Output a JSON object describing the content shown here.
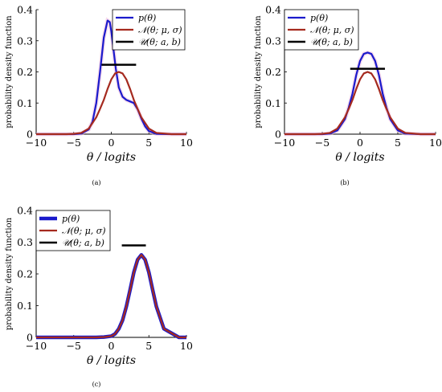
{
  "figure": {
    "panel_labels": [
      "(a)",
      "(b)",
      "(c)"
    ]
  },
  "colors": {
    "p_theta": "#1a1acc",
    "normal": "#a52a1f",
    "uniform": "#000000",
    "highlight_pink": "#f2b8dc"
  },
  "chart_data": [
    {
      "type": "line",
      "panel": "(a)",
      "xlabel": "θ / logits",
      "ylabel": "probability density function",
      "xlim": [
        -10,
        10
      ],
      "ylim": [
        0,
        0.4
      ],
      "xticks": [
        -10,
        -5,
        0,
        5,
        10
      ],
      "yticks": [
        0,
        0.1,
        0.2,
        0.3,
        0.4
      ],
      "grid": false,
      "legend_position": "top-right",
      "series": [
        {
          "name": "p(θ)",
          "color": "#1a1acc",
          "x": [
            -10,
            -8,
            -6,
            -5,
            -4,
            -3,
            -2.5,
            -2,
            -1.5,
            -1,
            -0.5,
            -0.2,
            0,
            0.3,
            0.6,
            1,
            1.5,
            2,
            2.5,
            3,
            3.5,
            4,
            4.5,
            5,
            6,
            8,
            10
          ],
          "y": [
            0,
            0,
            0,
            0,
            0.002,
            0.015,
            0.04,
            0.1,
            0.2,
            0.31,
            0.365,
            0.36,
            0.33,
            0.27,
            0.21,
            0.15,
            0.12,
            0.11,
            0.105,
            0.1,
            0.08,
            0.05,
            0.025,
            0.01,
            0.001,
            0,
            0
          ]
        },
        {
          "name": "𝒩(θ; μ, σ)",
          "color": "#a52a1f",
          "x": [
            -10,
            -8,
            -6,
            -5,
            -4,
            -3,
            -2,
            -1.5,
            -1,
            -0.5,
            0,
            0.5,
            1,
            1.5,
            2,
            2.5,
            3,
            3.5,
            4,
            5,
            6,
            8,
            10
          ],
          "y": [
            0,
            0,
            0,
            0.001,
            0.004,
            0.018,
            0.054,
            0.081,
            0.11,
            0.145,
            0.176,
            0.195,
            0.2,
            0.195,
            0.176,
            0.145,
            0.11,
            0.081,
            0.054,
            0.018,
            0.004,
            0,
            0
          ]
        },
        {
          "name": "𝒰(θ; a, b)",
          "color": "#000000",
          "x": [
            -1.3,
            3.3
          ],
          "y": [
            0.223,
            0.223
          ]
        }
      ]
    },
    {
      "type": "line",
      "panel": "(b)",
      "xlabel": "θ / logits",
      "ylabel": "probability density function",
      "xlim": [
        -10,
        10
      ],
      "ylim": [
        0,
        0.4
      ],
      "xticks": [
        -10,
        -5,
        0,
        5,
        10
      ],
      "yticks": [
        0,
        0.1,
        0.2,
        0.3,
        0.4
      ],
      "grid": false,
      "legend_position": "top-right",
      "series": [
        {
          "name": "p(θ)",
          "color": "#1a1acc",
          "x": [
            -10,
            -8,
            -6,
            -5,
            -4,
            -3,
            -2,
            -1.5,
            -1,
            -0.5,
            0,
            0.5,
            1,
            1.5,
            2,
            2.5,
            3,
            3.5,
            4,
            5,
            6,
            8,
            10
          ],
          "y": [
            0,
            0,
            0,
            0,
            0.002,
            0.012,
            0.048,
            0.085,
            0.13,
            0.19,
            0.235,
            0.258,
            0.262,
            0.258,
            0.235,
            0.19,
            0.13,
            0.085,
            0.048,
            0.012,
            0.002,
            0,
            0
          ]
        },
        {
          "name": "𝒩(θ; μ, σ)",
          "color": "#a52a1f",
          "x": [
            -10,
            -8,
            -6,
            -5,
            -4,
            -3,
            -2,
            -1.5,
            -1,
            -0.5,
            0,
            0.5,
            1,
            1.5,
            2,
            2.5,
            3,
            3.5,
            4,
            5,
            6,
            8,
            10
          ],
          "y": [
            0,
            0,
            0,
            0.001,
            0.004,
            0.018,
            0.054,
            0.081,
            0.11,
            0.145,
            0.176,
            0.195,
            0.2,
            0.195,
            0.176,
            0.145,
            0.11,
            0.081,
            0.054,
            0.018,
            0.004,
            0,
            0
          ]
        },
        {
          "name": "𝒰(θ; a, b)",
          "color": "#000000",
          "x": [
            -1.3,
            3.3
          ],
          "y": [
            0.21,
            0.21
          ]
        }
      ]
    },
    {
      "type": "line",
      "panel": "(c)",
      "xlabel": "θ / logits",
      "ylabel": "probability density function",
      "xlim": [
        -10,
        10
      ],
      "ylim": [
        0,
        0.4
      ],
      "xticks": [
        -10,
        -5,
        0,
        5,
        10
      ],
      "yticks": [
        0,
        0.1,
        0.2,
        0.3,
        0.4
      ],
      "grid": false,
      "legend_position": "top-left",
      "series": [
        {
          "name": "p(θ)",
          "color": "#1a1acc",
          "x": [
            -10,
            -6,
            -3,
            -2,
            -1,
            0,
            0.5,
            1,
            1.5,
            2,
            2.5,
            3,
            3.5,
            4,
            4.5,
            5,
            5.5,
            6,
            7,
            9,
            10
          ],
          "y": [
            0,
            0,
            0,
            0,
            0.001,
            0.004,
            0.011,
            0.027,
            0.054,
            0.097,
            0.15,
            0.205,
            0.245,
            0.26,
            0.245,
            0.205,
            0.15,
            0.097,
            0.027,
            0,
            0
          ]
        },
        {
          "name": "𝒩(θ; μ, σ)",
          "color": "#a52a1f",
          "x": [
            -10,
            -6,
            -3,
            -2,
            -1,
            0,
            0.5,
            1,
            1.5,
            2,
            2.5,
            3,
            3.5,
            4,
            4.5,
            5,
            5.5,
            6,
            7,
            9,
            10
          ],
          "y": [
            0,
            0,
            0,
            0,
            0.001,
            0.004,
            0.011,
            0.027,
            0.054,
            0.097,
            0.15,
            0.205,
            0.245,
            0.26,
            0.245,
            0.205,
            0.15,
            0.097,
            0.027,
            0,
            0
          ]
        },
        {
          "name": "𝒰(θ; a, b)",
          "color": "#000000",
          "x": [
            1.4,
            4.6
          ],
          "y": [
            0.29,
            0.29
          ]
        }
      ]
    }
  ]
}
